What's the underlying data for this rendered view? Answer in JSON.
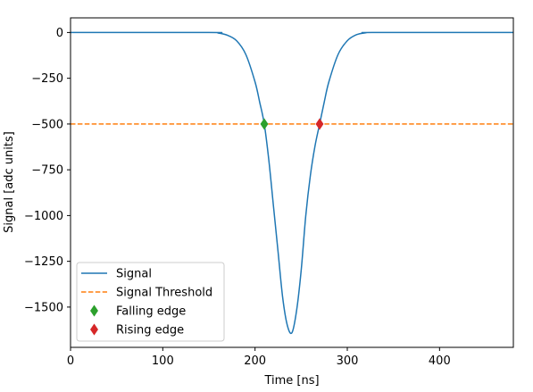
{
  "chart_data": {
    "type": "line",
    "title": "",
    "xlabel": "Time [ns]",
    "ylabel": "Signal [adc units]",
    "xlim": [
      0,
      480
    ],
    "ylim": [
      -1720,
      80
    ],
    "xticks": [
      0,
      100,
      200,
      300,
      400
    ],
    "yticks": [
      0,
      -250,
      -500,
      -750,
      -1000,
      -1250,
      -1500
    ],
    "ytick_labels": [
      "0",
      "−250",
      "−500",
      "−750",
      "−1000",
      "−1250",
      "−1500"
    ],
    "grid": false,
    "legend_position": "lower-left",
    "series": [
      {
        "name": "Signal",
        "kind": "line",
        "color": "#1f77b4",
        "x": [
          0,
          150,
          160,
          170,
          180,
          190,
          200,
          205,
          210,
          215,
          220,
          225,
          230,
          235,
          240,
          245,
          250,
          255,
          260,
          265,
          270,
          275,
          280,
          290,
          300,
          310,
          320,
          330,
          480
        ],
        "y": [
          0,
          0,
          -3,
          -15,
          -45,
          -120,
          -270,
          -380,
          -500,
          -700,
          -950,
          -1200,
          -1450,
          -1600,
          -1640,
          -1520,
          -1300,
          -1000,
          -780,
          -620,
          -500,
          -380,
          -270,
          -120,
          -45,
          -12,
          -2,
          0,
          0
        ]
      },
      {
        "name": "Signal Threshold",
        "kind": "dashed-line",
        "color": "#ff7f0e",
        "x": [
          0,
          480
        ],
        "y": [
          -500,
          -500
        ]
      },
      {
        "name": "Falling edge",
        "kind": "marker",
        "marker": "diamond",
        "color": "#2ca02c",
        "x": [
          210
        ],
        "y": [
          -500
        ]
      },
      {
        "name": "Rising edge",
        "kind": "marker",
        "marker": "diamond",
        "color": "#d62728",
        "x": [
          270
        ],
        "y": [
          -500
        ]
      }
    ]
  }
}
